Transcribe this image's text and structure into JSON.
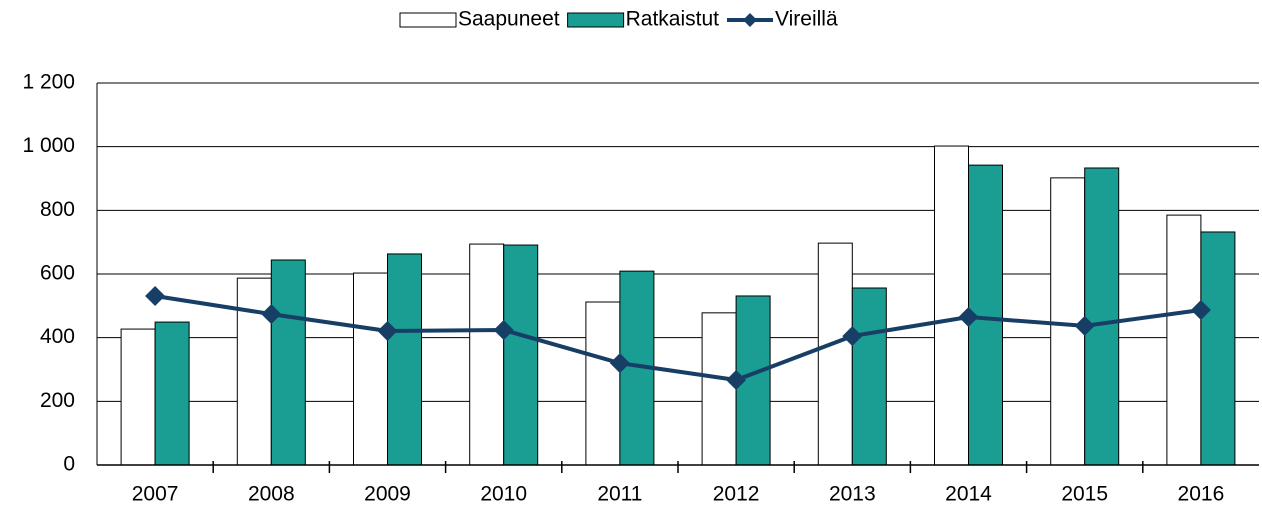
{
  "chart_data": {
    "type": "bar_line",
    "categories": [
      "2007",
      "2008",
      "2009",
      "2010",
      "2011",
      "2012",
      "2013",
      "2014",
      "2015",
      "2016"
    ],
    "series": [
      {
        "name": "Saapuneet",
        "type": "bar",
        "color": "#ffffff",
        "values": [
          427,
          587,
          603,
          694,
          512,
          478,
          697,
          1002,
          902,
          785
        ]
      },
      {
        "name": "Ratkaistut",
        "type": "bar",
        "color": "#1a9e94",
        "values": [
          449,
          644,
          663,
          691,
          609,
          531,
          556,
          942,
          933,
          732
        ]
      },
      {
        "name": "Vireillä",
        "type": "line",
        "color": "#173f66",
        "values": [
          531,
          474,
          421,
          424,
          320,
          267,
          405,
          465,
          437,
          487
        ]
      }
    ],
    "ylim": [
      0,
      1200
    ],
    "yticks": [
      0,
      200,
      400,
      600,
      800,
      {
        "value": 1000,
        "label": "1 000"
      },
      {
        "value": 1200,
        "label": "1 200"
      }
    ],
    "grid": true,
    "legend": "top"
  }
}
